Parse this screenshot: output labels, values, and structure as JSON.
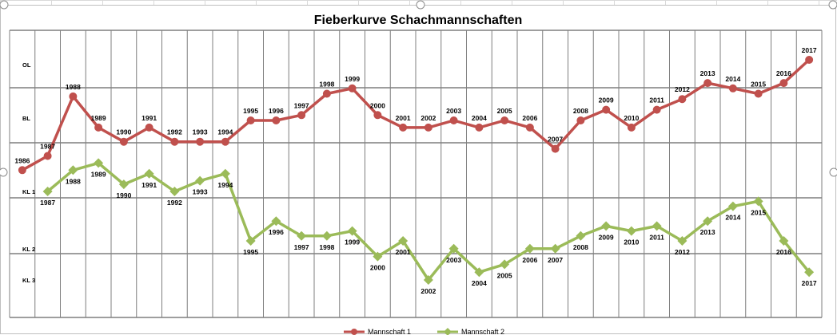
{
  "chart_data": {
    "type": "line",
    "title": "Fieberkurve Schachmannschaften",
    "y_categories": [
      "OL",
      "BL",
      "KL 1",
      "KL 2",
      "KL 3"
    ],
    "x": [
      "1986",
      "1987",
      "1988",
      "1989",
      "1990",
      "1991",
      "1992",
      "1993",
      "1994",
      "1995",
      "1996",
      "1997",
      "1998",
      "1999",
      "2000",
      "2001",
      "2002",
      "2003",
      "2004",
      "2005",
      "2006",
      "2007",
      "2008",
      "2009",
      "2010",
      "2011",
      "2012",
      "2013",
      "2014",
      "2015",
      "2016",
      "2017"
    ],
    "y_axis_note": "rank position: OL = 1, BL = 2, KL 1 = 3, KL 2 = 4, KL 3 = 4.5",
    "ylim": [
      1,
      4.5
    ],
    "grid": true,
    "legend_position": "bottom",
    "series": [
      {
        "name": "Mannschaft 1",
        "color": "#c0504d",
        "marker": "circle",
        "values": [
          2.7,
          2.5,
          1.55,
          2.1,
          2.3,
          2.1,
          2.3,
          2.3,
          2.3,
          2.0,
          2.0,
          1.9,
          1.5,
          1.4,
          1.9,
          2.1,
          2.1,
          2.0,
          2.1,
          2.0,
          2.1,
          2.4,
          2.0,
          1.8,
          2.1,
          1.8,
          1.6,
          1.3,
          1.4,
          1.5,
          1.3,
          0.95
        ]
      },
      {
        "name": "Mannschaft 2",
        "color": "#9bbb59",
        "marker": "diamond",
        "values": [
          null,
          3.0,
          2.7,
          2.6,
          2.9,
          2.75,
          3.0,
          2.85,
          2.75,
          4.0,
          3.6,
          3.9,
          3.9,
          3.8,
          4.2,
          4.0,
          4.5,
          4.1,
          4.4,
          4.3,
          4.1,
          4.1,
          3.9,
          3.7,
          3.8,
          3.7,
          4.0,
          3.6,
          3.3,
          3.2,
          4.0,
          4.4
        ]
      }
    ]
  },
  "legend": {
    "items": [
      {
        "name": "Mannschaft 1",
        "color": "#c0504d",
        "marker": "circle"
      },
      {
        "name": "Mannschaft 2",
        "color": "#9bbb59",
        "marker": "diamond"
      }
    ]
  }
}
